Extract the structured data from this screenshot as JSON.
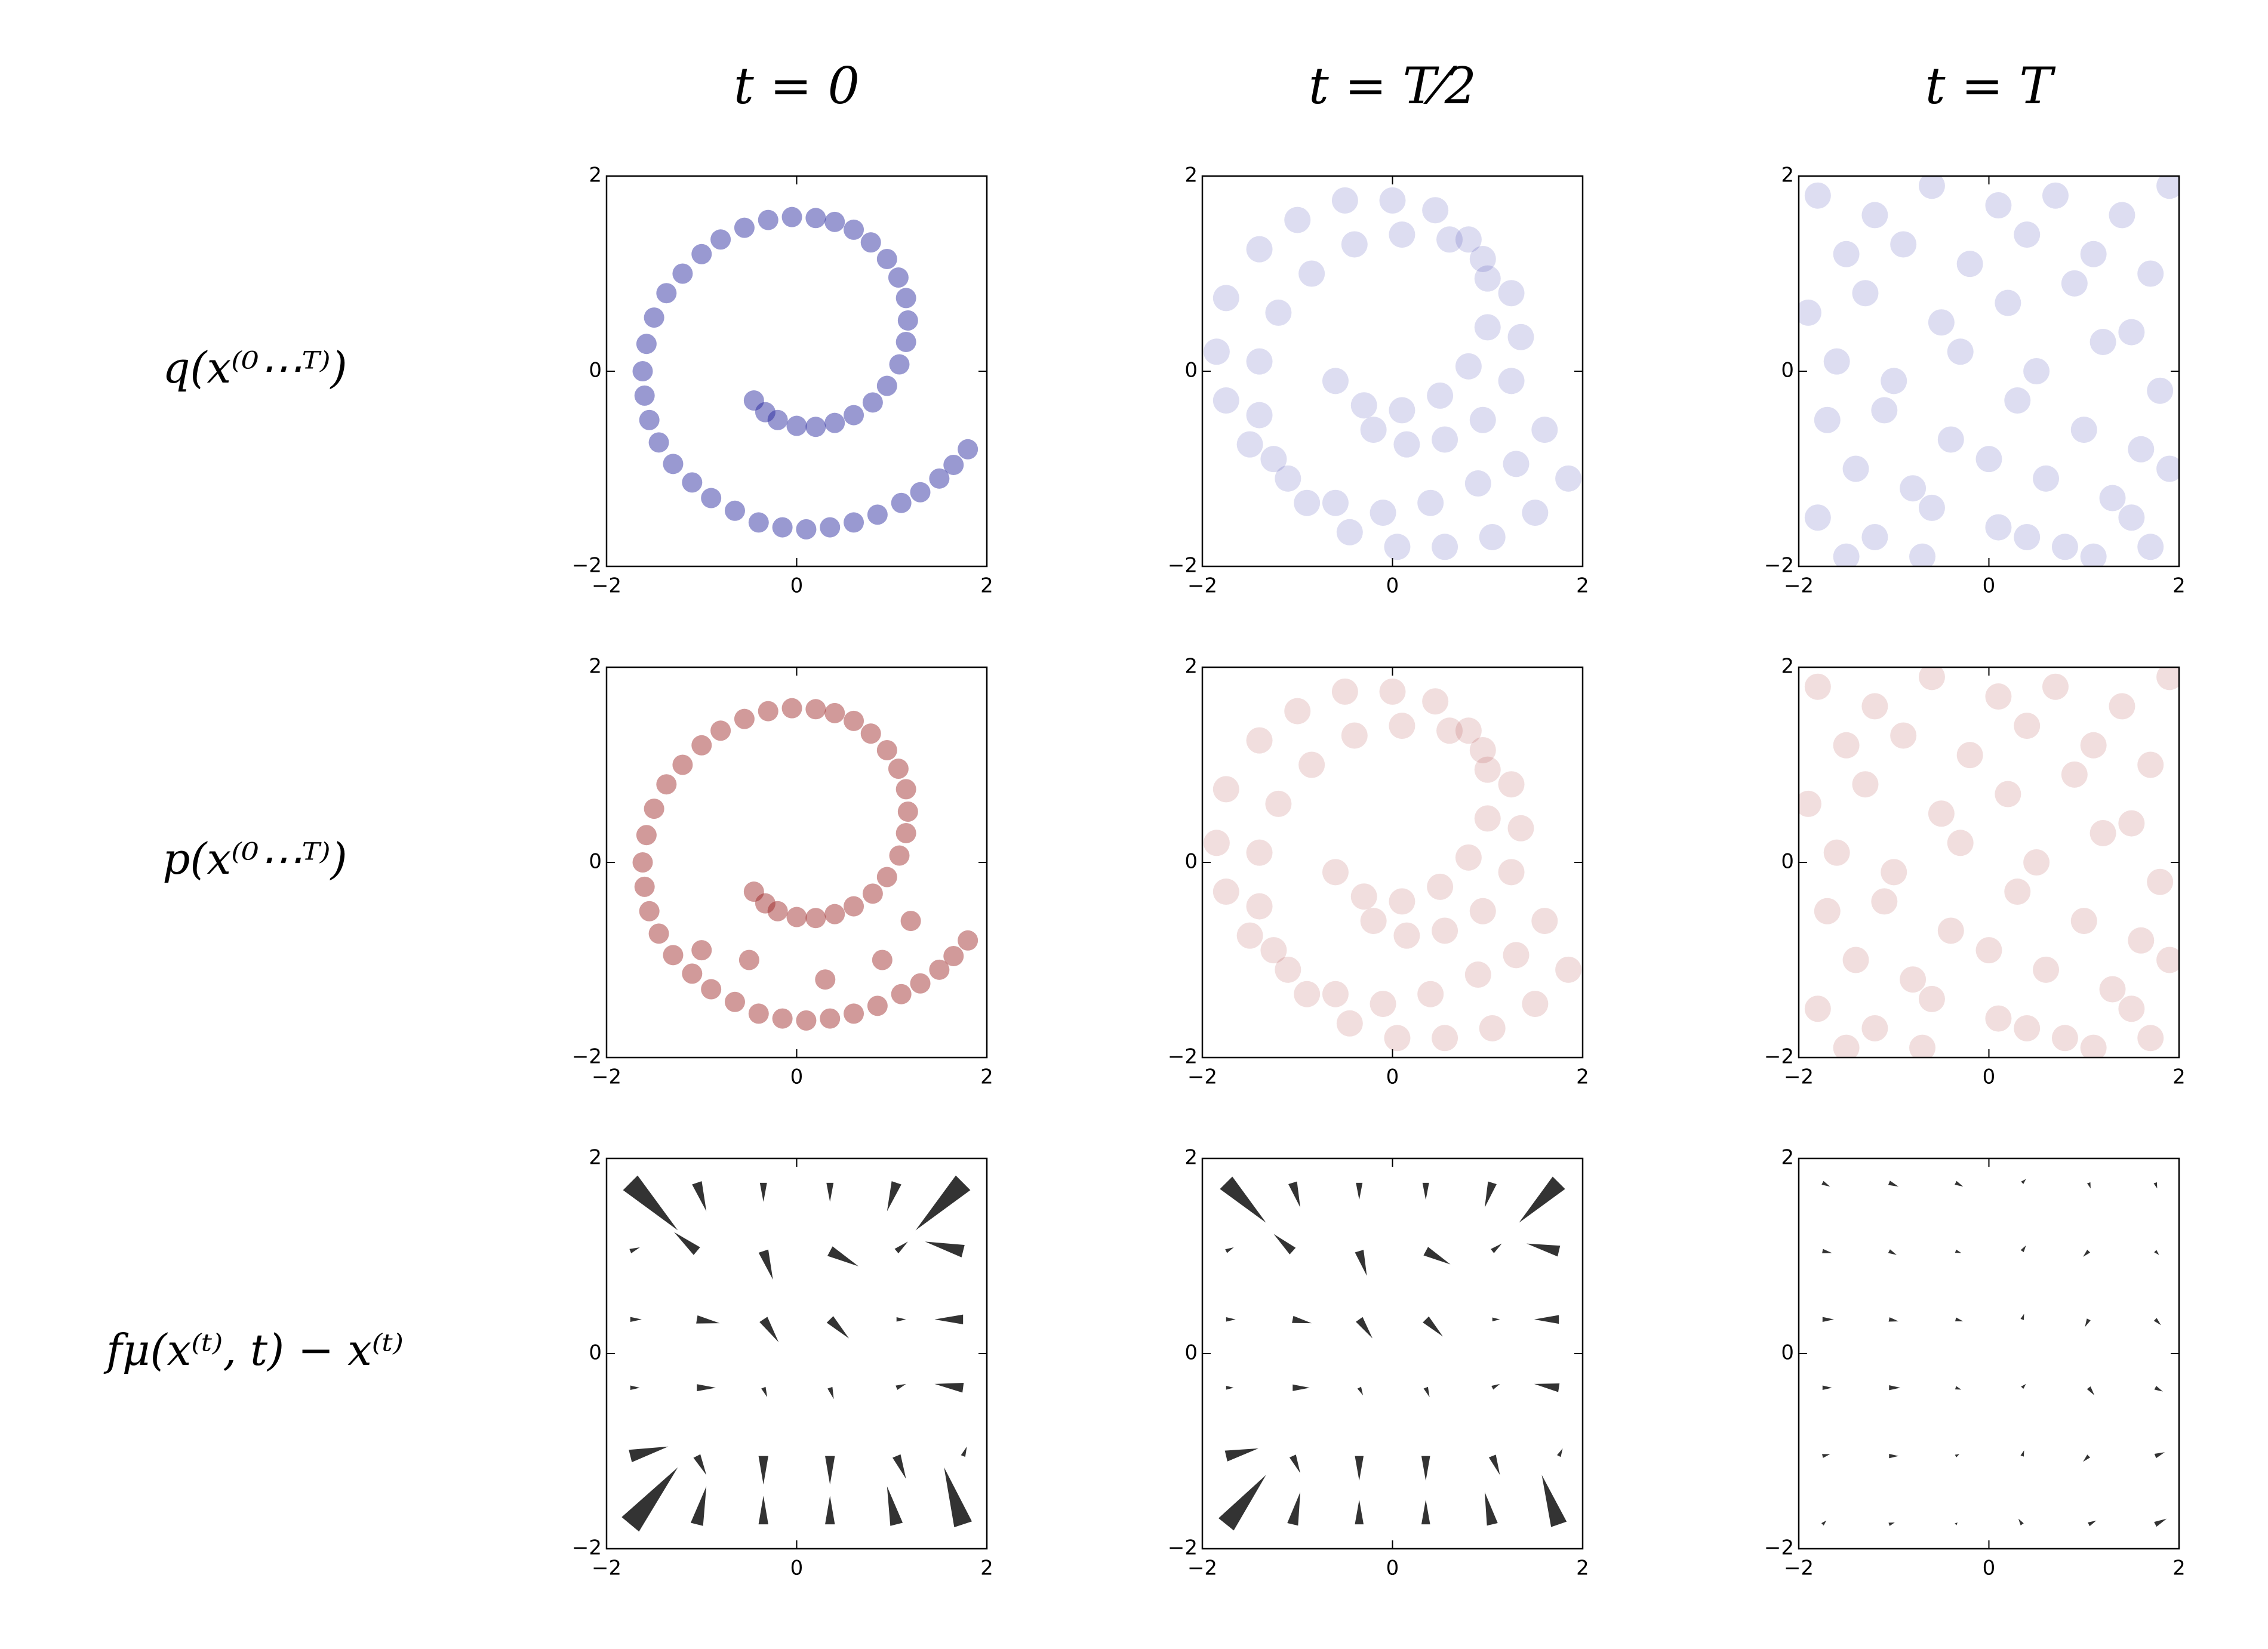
{
  "chart_data": [
    {
      "type": "scatter",
      "title": "t = 0",
      "ylabel": "q(x⁽⁰⋯ᵀ⁾)",
      "color": "#1c1c9a",
      "xlim": [
        -2,
        2
      ],
      "ylim": [
        -2,
        2
      ],
      "xticks": [
        {
          "value": -2,
          "label": "−2"
        },
        0,
        2
      ],
      "yticks": [
        {
          "value": -2,
          "label": "−2"
        },
        0,
        2
      ],
      "x": [
        -0.45,
        -0.33,
        -0.2,
        0,
        0.2,
        0.4,
        0.6,
        0.8,
        0.95,
        1.08,
        1.15,
        1.17,
        1.15,
        1.07,
        0.95,
        0.78,
        0.6,
        0.4,
        0.2,
        -0.05,
        -0.3,
        -0.55,
        -0.8,
        -1.0,
        -1.2,
        -1.37,
        -1.5,
        -1.58,
        -1.62,
        -1.6,
        -1.55,
        -1.45,
        -1.3,
        -1.1,
        -0.9,
        -0.65,
        -0.4,
        -0.15,
        0.1,
        0.35,
        0.6,
        0.85,
        1.1,
        1.3,
        1.5,
        1.65,
        1.8
      ],
      "y": [
        -0.3,
        -0.42,
        -0.5,
        -0.56,
        -0.57,
        -0.53,
        -0.45,
        -0.32,
        -0.15,
        0.07,
        0.3,
        0.52,
        0.75,
        0.96,
        1.15,
        1.32,
        1.45,
        1.53,
        1.57,
        1.58,
        1.55,
        1.47,
        1.35,
        1.2,
        1.0,
        0.8,
        0.55,
        0.28,
        0,
        -0.25,
        -0.5,
        -0.73,
        -0.95,
        -1.14,
        -1.3,
        -1.43,
        -1.55,
        -1.6,
        -1.62,
        -1.6,
        -1.55,
        -1.47,
        -1.35,
        -1.24,
        -1.1,
        -0.96,
        -0.8
      ]
    },
    {
      "type": "scatter",
      "title": "t = T⁄2",
      "color": "#2a2aa8",
      "xlim": [
        -2,
        2
      ],
      "ylim": [
        -2,
        2
      ],
      "xticks": [
        {
          "value": -2,
          "label": "−2"
        },
        0,
        2
      ],
      "yticks": [
        {
          "value": -2,
          "label": "−2"
        },
        0,
        2
      ],
      "x": [
        -0.6,
        -0.2,
        -0.3,
        0.15,
        0.1,
        0.55,
        0.5,
        0.95,
        0.8,
        1.25,
        1.0,
        1.35,
        1.0,
        1.25,
        0.8,
        0.95,
        0.45,
        0.6,
        0.0,
        0.1,
        -0.5,
        -0.4,
        -1.0,
        -0.85,
        -1.4,
        -1.2,
        -1.75,
        -1.4,
        -1.85,
        -1.4,
        -1.75,
        -1.25,
        -1.5,
        -0.9,
        -1.1,
        -0.45,
        -0.6,
        0.05,
        -0.1,
        0.55,
        0.4,
        1.05,
        0.9,
        1.5,
        1.3,
        1.85,
        1.6
      ],
      "y": [
        -0.1,
        -0.6,
        -0.35,
        -0.75,
        -0.4,
        -0.7,
        -0.25,
        -0.5,
        0.05,
        -0.1,
        0.45,
        0.35,
        0.95,
        0.8,
        1.35,
        1.15,
        1.65,
        1.35,
        1.75,
        1.4,
        1.75,
        1.3,
        1.55,
        1.0,
        1.25,
        0.6,
        0.75,
        0.1,
        0.2,
        -0.45,
        -0.3,
        -0.9,
        -0.75,
        -1.35,
        -1.1,
        -1.65,
        -1.35,
        -1.8,
        -1.45,
        -1.8,
        -1.35,
        -1.7,
        -1.15,
        -1.45,
        -0.95,
        -1.1,
        -0.6
      ]
    },
    {
      "type": "scatter",
      "title": "t = T",
      "color": "#2a2aa8",
      "xlim": [
        -2,
        2
      ],
      "ylim": [
        -2,
        2
      ],
      "xticks": [
        {
          "value": -2,
          "label": "−2"
        },
        0,
        2
      ],
      "yticks": [
        {
          "value": -2,
          "label": "−2"
        },
        0,
        2
      ],
      "x": [
        -1.8,
        -1.2,
        -0.6,
        0.1,
        0.7,
        1.4,
        1.9,
        -1.5,
        -0.9,
        -0.2,
        0.4,
        1.1,
        1.7,
        -1.9,
        -1.3,
        -0.5,
        0.2,
        0.9,
        1.5,
        -1.6,
        -1.0,
        -0.3,
        0.5,
        1.2,
        1.8,
        -1.7,
        -1.1,
        -0.4,
        0.3,
        1.0,
        1.6,
        -1.4,
        -0.8,
        0.0,
        0.6,
        1.3,
        1.9,
        -1.8,
        -1.2,
        -0.6,
        0.1,
        0.8,
        1.5,
        -1.5,
        -0.7,
        0.4,
        1.1,
        1.7
      ],
      "y": [
        1.8,
        1.6,
        1.9,
        1.7,
        1.8,
        1.6,
        1.9,
        1.2,
        1.3,
        1.1,
        1.4,
        1.2,
        1.0,
        0.6,
        0.8,
        0.5,
        0.7,
        0.9,
        0.4,
        0.1,
        -0.1,
        0.2,
        0.0,
        0.3,
        -0.2,
        -0.5,
        -0.4,
        -0.7,
        -0.3,
        -0.6,
        -0.8,
        -1.0,
        -1.2,
        -0.9,
        -1.1,
        -1.3,
        -1.0,
        -1.5,
        -1.7,
        -1.4,
        -1.6,
        -1.8,
        -1.5,
        -1.9,
        -1.9,
        -1.7,
        -1.9,
        -1.8
      ]
    },
    {
      "type": "scatter",
      "ylabel": "p(x⁽⁰⋯ᵀ⁾)",
      "color": "#9a2020",
      "xlim": [
        -2,
        2
      ],
      "ylim": [
        -2,
        2
      ],
      "xticks": [
        {
          "value": -2,
          "label": "−2"
        },
        0,
        2
      ],
      "yticks": [
        {
          "value": -2,
          "label": "−2"
        },
        0,
        2
      ],
      "x": [
        -0.45,
        -0.33,
        -0.2,
        0,
        0.2,
        0.4,
        0.6,
        0.8,
        0.95,
        1.08,
        1.15,
        1.17,
        1.15,
        1.07,
        0.95,
        0.78,
        0.6,
        0.4,
        0.2,
        -0.05,
        -0.3,
        -0.55,
        -0.8,
        -1.0,
        -1.2,
        -1.37,
        -1.5,
        -1.58,
        -1.62,
        -1.6,
        -1.55,
        -1.45,
        -1.3,
        -1.1,
        -0.9,
        -0.65,
        -0.4,
        -0.15,
        0.1,
        0.35,
        0.6,
        0.85,
        1.1,
        1.3,
        1.5,
        1.65,
        1.8,
        -0.5,
        0.3,
        1.2,
        -1.0,
        0.9
      ],
      "y": [
        -0.3,
        -0.42,
        -0.5,
        -0.56,
        -0.57,
        -0.53,
        -0.45,
        -0.32,
        -0.15,
        0.07,
        0.3,
        0.52,
        0.75,
        0.96,
        1.15,
        1.32,
        1.45,
        1.53,
        1.57,
        1.58,
        1.55,
        1.47,
        1.35,
        1.2,
        1.0,
        0.8,
        0.55,
        0.28,
        0,
        -0.25,
        -0.5,
        -0.73,
        -0.95,
        -1.14,
        -1.3,
        -1.43,
        -1.55,
        -1.6,
        -1.62,
        -1.6,
        -1.55,
        -1.47,
        -1.35,
        -1.24,
        -1.1,
        -0.96,
        -0.8,
        -1.0,
        -1.2,
        -0.6,
        -0.9,
        -1.0
      ]
    },
    {
      "type": "scatter",
      "color": "#a83030",
      "xlim": [
        -2,
        2
      ],
      "ylim": [
        -2,
        2
      ],
      "xticks": [
        {
          "value": -2,
          "label": "−2"
        },
        0,
        2
      ],
      "yticks": [
        {
          "value": -2,
          "label": "−2"
        },
        0,
        2
      ],
      "x": [
        -0.6,
        -0.2,
        -0.3,
        0.15,
        0.1,
        0.55,
        0.5,
        0.95,
        0.8,
        1.25,
        1.0,
        1.35,
        1.0,
        1.25,
        0.8,
        0.95,
        0.45,
        0.6,
        0.0,
        0.1,
        -0.5,
        -0.4,
        -1.0,
        -0.85,
        -1.4,
        -1.2,
        -1.75,
        -1.4,
        -1.85,
        -1.4,
        -1.75,
        -1.25,
        -1.5,
        -0.9,
        -1.1,
        -0.45,
        -0.6,
        0.05,
        -0.1,
        0.55,
        0.4,
        1.05,
        0.9,
        1.5,
        1.3,
        1.85,
        1.6
      ],
      "y": [
        -0.1,
        -0.6,
        -0.35,
        -0.75,
        -0.4,
        -0.7,
        -0.25,
        -0.5,
        0.05,
        -0.1,
        0.45,
        0.35,
        0.95,
        0.8,
        1.35,
        1.15,
        1.65,
        1.35,
        1.75,
        1.4,
        1.75,
        1.3,
        1.55,
        1.0,
        1.25,
        0.6,
        0.75,
        0.1,
        0.2,
        -0.45,
        -0.3,
        -0.9,
        -0.75,
        -1.35,
        -1.1,
        -1.65,
        -1.35,
        -1.8,
        -1.45,
        -1.8,
        -1.35,
        -1.7,
        -1.15,
        -1.45,
        -0.95,
        -1.1,
        -0.6
      ]
    },
    {
      "type": "scatter",
      "color": "#a83030",
      "xlim": [
        -2,
        2
      ],
      "ylim": [
        -2,
        2
      ],
      "xticks": [
        {
          "value": -2,
          "label": "−2"
        },
        0,
        2
      ],
      "yticks": [
        {
          "value": -2,
          "label": "−2"
        },
        0,
        2
      ],
      "x": [
        -1.8,
        -1.2,
        -0.6,
        0.1,
        0.7,
        1.4,
        1.9,
        -1.5,
        -0.9,
        -0.2,
        0.4,
        1.1,
        1.7,
        -1.9,
        -1.3,
        -0.5,
        0.2,
        0.9,
        1.5,
        -1.6,
        -1.0,
        -0.3,
        0.5,
        1.2,
        1.8,
        -1.7,
        -1.1,
        -0.4,
        0.3,
        1.0,
        1.6,
        -1.4,
        -0.8,
        0.0,
        0.6,
        1.3,
        1.9,
        -1.8,
        -1.2,
        -0.6,
        0.1,
        0.8,
        1.5,
        -1.5,
        -0.7,
        0.4,
        1.1,
        1.7
      ],
      "y": [
        1.8,
        1.6,
        1.9,
        1.7,
        1.8,
        1.6,
        1.9,
        1.2,
        1.3,
        1.1,
        1.4,
        1.2,
        1.0,
        0.6,
        0.8,
        0.5,
        0.7,
        0.9,
        0.4,
        0.1,
        -0.1,
        0.2,
        0.0,
        0.3,
        -0.2,
        -0.5,
        -0.4,
        -0.7,
        -0.3,
        -0.6,
        -0.8,
        -1.0,
        -1.2,
        -0.9,
        -1.1,
        -1.3,
        -1.0,
        -1.5,
        -1.7,
        -1.4,
        -1.6,
        -1.8,
        -1.5,
        -1.9,
        -1.9,
        -1.7,
        -1.9,
        -1.8
      ]
    },
    {
      "type": "quiver",
      "ylabel": "fμ(x⁽ᵗ⁾, t) − x⁽ᵗ⁾",
      "color": "#333333",
      "xlim": [
        -2,
        2
      ],
      "ylim": [
        -2,
        2
      ],
      "xticks": [
        {
          "value": -2,
          "label": "−2"
        },
        0,
        2
      ],
      "yticks": [
        {
          "value": -2,
          "label": "−2"
        },
        0,
        2
      ],
      "grid": [
        -1.75,
        -1.05,
        -0.35,
        0.35,
        1.05,
        1.75
      ],
      "u": [
        [
          0.25,
          0.05,
          0,
          0,
          -0.05,
          -0.1
        ],
        [
          0.2,
          0.05,
          0,
          0,
          0.05,
          0.02
        ],
        [
          0.05,
          0.1,
          0.02,
          0.02,
          0.05,
          -0.15
        ],
        [
          0.06,
          0.12,
          0.08,
          0.1,
          0.05,
          -0.15
        ],
        [
          0.05,
          -0.12,
          0.05,
          0.15,
          0.06,
          -0.2
        ],
        [
          0.25,
          0.05,
          0,
          0,
          -0.05,
          -0.25
        ]
      ],
      "v": [
        [
          0.3,
          0.2,
          0.15,
          0.15,
          0.2,
          0.3
        ],
        [
          0.05,
          -0.1,
          -0.15,
          -0.15,
          -0.12,
          0.05
        ],
        [
          0,
          0,
          -0.05,
          -0.06,
          0.02,
          0.02
        ],
        [
          0,
          -0.02,
          -0.12,
          -0.1,
          0,
          0
        ],
        [
          0.02,
          0.1,
          -0.15,
          -0.08,
          0.05,
          0.05
        ],
        [
          -0.25,
          -0.15,
          -0.1,
          -0.1,
          -0.15,
          -0.25
        ]
      ]
    },
    {
      "type": "quiver",
      "color": "#333333",
      "xlim": [
        -2,
        2
      ],
      "ylim": [
        -2,
        2
      ],
      "xticks": [
        {
          "value": -2,
          "label": "−2"
        },
        0,
        2
      ],
      "yticks": [
        {
          "value": -2,
          "label": "−2"
        },
        0,
        2
      ],
      "grid": [
        -1.75,
        -1.05,
        -0.35,
        0.35,
        1.05,
        1.75
      ],
      "u": [
        [
          0.21,
          0.04,
          0,
          0,
          -0.04,
          -0.09
        ],
        [
          0.17,
          0.04,
          0,
          0,
          0.04,
          0.02
        ],
        [
          0.04,
          0.09,
          0.02,
          0.02,
          0.04,
          -0.13
        ],
        [
          0.05,
          0.1,
          0.07,
          0.09,
          0.04,
          -0.13
        ],
        [
          0.04,
          -0.1,
          0.04,
          0.13,
          0.05,
          -0.17
        ],
        [
          0.21,
          0.04,
          0,
          0,
          -0.04,
          -0.21
        ]
      ],
      "v": [
        [
          0.26,
          0.17,
          0.13,
          0.13,
          0.17,
          0.26
        ],
        [
          0.04,
          -0.09,
          -0.13,
          -0.13,
          -0.1,
          0.04
        ],
        [
          0,
          0,
          -0.04,
          -0.05,
          0.02,
          0.02
        ],
        [
          0,
          -0.02,
          -0.1,
          -0.09,
          0,
          0
        ],
        [
          0.02,
          0.09,
          -0.13,
          -0.07,
          0.04,
          0.04
        ],
        [
          -0.21,
          -0.13,
          -0.09,
          -0.09,
          -0.13,
          -0.21
        ]
      ]
    },
    {
      "type": "quiver",
      "color": "#333333",
      "xlim": [
        -2,
        2
      ],
      "ylim": [
        -2,
        2
      ],
      "xticks": [
        {
          "value": -2,
          "label": "−2"
        },
        0,
        2
      ],
      "yticks": [
        {
          "value": -2,
          "label": "−2"
        },
        0,
        2
      ],
      "grid": [
        -1.75,
        -1.05,
        -0.35,
        0.35,
        1.05,
        1.75
      ],
      "u": [
        [
          0.02,
          0.03,
          0.01,
          -0.02,
          0.04,
          0.06
        ],
        [
          0.04,
          0.05,
          0.02,
          0.01,
          -0.03,
          0.05
        ],
        [
          0.05,
          0.06,
          0.03,
          0.02,
          0.03,
          0.04
        ],
        [
          0.06,
          0.05,
          0.04,
          0.01,
          -0.02,
          0.03
        ],
        [
          0.05,
          0.04,
          0.03,
          0.02,
          -0.03,
          0.02
        ],
        [
          0.04,
          0.05,
          0.04,
          0.02,
          0.01,
          0.01
        ]
      ],
      "v": [
        [
          0.02,
          0.01,
          0.01,
          0.03,
          0.02,
          0.03
        ],
        [
          0.01,
          0,
          0.01,
          0.03,
          -0.03,
          0.02
        ],
        [
          0,
          0,
          -0.01,
          0.02,
          -0.04,
          -0.02
        ],
        [
          0,
          -0.01,
          -0.01,
          0.03,
          -0.04,
          -0.03
        ],
        [
          -0.01,
          -0.02,
          -0.01,
          0.03,
          -0.03,
          -0.02
        ],
        [
          -0.02,
          -0.02,
          -0.02,
          0.02,
          -0.03,
          -0.03
        ]
      ]
    }
  ]
}
